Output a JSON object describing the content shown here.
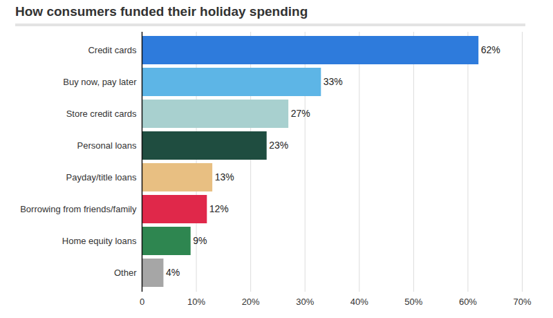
{
  "chart_data": {
    "type": "bar",
    "orientation": "horizontal",
    "title": "How consumers funded their holiday spending",
    "categories": [
      "Credit cards",
      "Buy now, pay later",
      "Store credit cards",
      "Personal loans",
      "Payday/title loans",
      "Borrowing from friends/family",
      "Home equity loans",
      "Other"
    ],
    "values": [
      62,
      33,
      27,
      23,
      13,
      12,
      9,
      4
    ],
    "value_labels": [
      "62%",
      "33%",
      "27%",
      "23%",
      "13%",
      "12%",
      "9%",
      "4%"
    ],
    "colors": [
      "#2e7bdc",
      "#5db5e6",
      "#a8d0cf",
      "#1f4d40",
      "#e8bf82",
      "#e0284a",
      "#2e8650",
      "#a6a6a6"
    ],
    "xlim": [
      0,
      70
    ],
    "xticks": [
      0,
      {
        "value": 10,
        "label": "10%"
      },
      {
        "value": 20,
        "label": "20%"
      },
      {
        "value": 30,
        "label": "30%"
      },
      {
        "value": 40,
        "label": "40%"
      },
      {
        "value": 50,
        "label": "50%"
      },
      {
        "value": 60,
        "label": "60%"
      },
      {
        "value": 70,
        "label": "70%"
      }
    ],
    "grid": true,
    "data_labels": true
  }
}
